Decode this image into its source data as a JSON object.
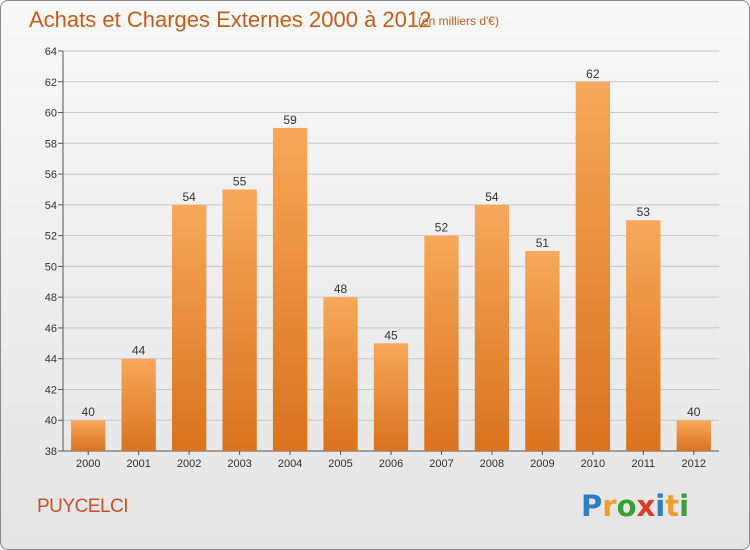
{
  "title": "Achats et Charges Externes 2000 à 2012",
  "subtitle": "(en milliers d'€)",
  "commune": "PUYCELCI",
  "logo": {
    "letters": [
      {
        "char": "P",
        "color": "#2e7fc2"
      },
      {
        "char": "r",
        "color": "#e9a030"
      },
      {
        "char": "o",
        "color": "#3aa035"
      },
      {
        "char": "x",
        "color": "#e03a28"
      },
      {
        "char": "i",
        "color": "#2e7fc2"
      },
      {
        "char": "t",
        "color": "#e9a030"
      },
      {
        "char": "i",
        "color": "#3aa035"
      }
    ]
  },
  "colors": {
    "bar_top": "#f7a85a",
    "bar_bottom": "#d9731f",
    "title": "#c45d1a"
  },
  "chart_data": {
    "type": "bar",
    "title": "Achats et Charges Externes 2000 à 2012",
    "subtitle": "(en milliers d'€)",
    "xlabel": "",
    "ylabel": "",
    "categories": [
      "2000",
      "2001",
      "2002",
      "2003",
      "2004",
      "2005",
      "2006",
      "2007",
      "2008",
      "2009",
      "2010",
      "2011",
      "2012"
    ],
    "values": [
      40,
      44,
      54,
      55,
      59,
      48,
      45,
      52,
      54,
      51,
      62,
      53,
      40
    ],
    "ylim": [
      38,
      64
    ],
    "yticks": [
      38,
      40,
      42,
      44,
      46,
      48,
      50,
      52,
      54,
      56,
      58,
      60,
      62,
      64
    ],
    "grid": true
  }
}
